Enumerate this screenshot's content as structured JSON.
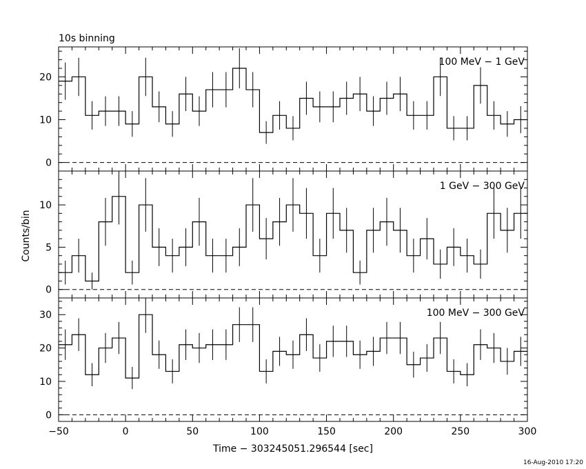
{
  "header": {
    "binning_label": "10s binning",
    "timestamp": "16-Aug-2010 17:20"
  },
  "axes": {
    "xlabel": "Time − 303245051.296544 [sec]",
    "ylabel": "Counts/bin"
  },
  "chart_data": [
    {
      "type": "line",
      "title": "100 MeV − 1 GeV",
      "xlim": [
        -50,
        300
      ],
      "ylim": [
        -2,
        27
      ],
      "yticks": [
        0,
        10,
        20
      ],
      "x": [
        -45,
        -35,
        -25,
        -15,
        -5,
        5,
        15,
        25,
        35,
        45,
        55,
        65,
        75,
        85,
        95,
        105,
        115,
        125,
        135,
        145,
        155,
        165,
        175,
        185,
        195,
        205,
        215,
        225,
        235,
        245,
        255,
        265,
        275,
        285,
        295
      ],
      "values": [
        19,
        20,
        11,
        12,
        12,
        9,
        20,
        13,
        9,
        16,
        12,
        17,
        17,
        22,
        17,
        7,
        11,
        8,
        15,
        13,
        13,
        15,
        16,
        12,
        15,
        16,
        11,
        11,
        20,
        8,
        8,
        18,
        11,
        9,
        10
      ]
    },
    {
      "type": "line",
      "title": "1 GeV − 300 GeV",
      "xlim": [
        -50,
        300
      ],
      "ylim": [
        -1,
        14
      ],
      "yticks": [
        0,
        5,
        10
      ],
      "x": [
        -45,
        -35,
        -25,
        -15,
        -5,
        5,
        15,
        25,
        35,
        45,
        55,
        65,
        75,
        85,
        95,
        105,
        115,
        125,
        135,
        145,
        155,
        165,
        175,
        185,
        195,
        205,
        215,
        225,
        235,
        245,
        255,
        265,
        275,
        285,
        295
      ],
      "values": [
        2,
        4,
        1,
        8,
        11,
        2,
        10,
        5,
        4,
        5,
        8,
        4,
        4,
        5,
        10,
        6,
        8,
        10,
        9,
        4,
        9,
        7,
        2,
        7,
        8,
        7,
        4,
        6,
        3,
        5,
        4,
        3,
        9,
        7,
        9
      ]
    },
    {
      "type": "line",
      "title": "100 MeV − 300 GeV",
      "xlim": [
        -50,
        300
      ],
      "xticks": [
        -50,
        0,
        50,
        100,
        150,
        200,
        250,
        300
      ],
      "ylim": [
        -2,
        35
      ],
      "yticks": [
        0,
        10,
        20,
        30
      ],
      "x": [
        -45,
        -35,
        -25,
        -15,
        -5,
        5,
        15,
        25,
        35,
        45,
        55,
        65,
        75,
        85,
        95,
        105,
        115,
        125,
        135,
        145,
        155,
        165,
        175,
        185,
        195,
        205,
        215,
        225,
        235,
        245,
        255,
        265,
        275,
        285,
        295
      ],
      "values": [
        21,
        24,
        12,
        20,
        23,
        11,
        30,
        18,
        13,
        21,
        20,
        21,
        21,
        27,
        27,
        13,
        19,
        18,
        24,
        17,
        22,
        22,
        18,
        19,
        23,
        23,
        15,
        17,
        23,
        13,
        12,
        21,
        20,
        16,
        19
      ]
    }
  ]
}
